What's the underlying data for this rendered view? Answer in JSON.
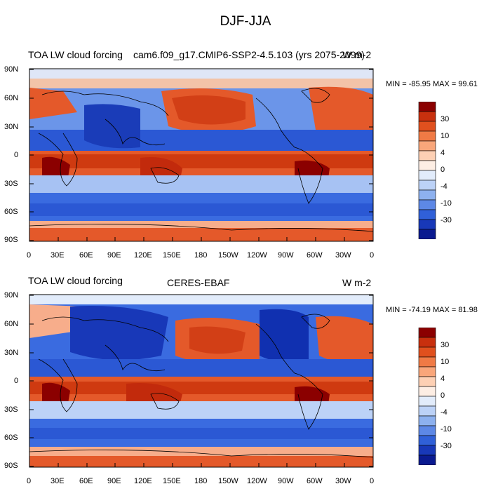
{
  "figure": {
    "title": "DJF-JJA"
  },
  "panels": [
    {
      "left_title": "TOA LW cloud forcing",
      "center_title": "cam6.f09_g17.CMIP6-SSP2-4.5.103 (yrs 2075-2099)",
      "right_title": "W m-2",
      "stats": "MIN = -85.95 MAX =  99.61"
    },
    {
      "left_title": "TOA LW cloud forcing",
      "center_title": "CERES-EBAF",
      "right_title": "W m-2",
      "stats": "MIN = -74.19 MAX =  81.98"
    }
  ],
  "axes": {
    "lat_labels": [
      "90N",
      "60N",
      "30N",
      "0",
      "30S",
      "60S",
      "90S"
    ],
    "lon_labels": [
      "0",
      "30E",
      "60E",
      "90E",
      "120E",
      "150E",
      "180",
      "150W",
      "120W",
      "90W",
      "60W",
      "30W",
      "0"
    ]
  },
  "colorbar": {
    "labels": [
      "30",
      "10",
      "4",
      "0",
      "-4",
      "-10",
      "-30"
    ],
    "colors": [
      "#8b0000",
      "#c8300e",
      "#e0501e",
      "#f07a45",
      "#f9a67a",
      "#fdd0b4",
      "#fdeee4",
      "#e2ecfb",
      "#bcd2f7",
      "#8db1ef",
      "#5d88e6",
      "#3060d8",
      "#1838b8",
      "#0a1a90"
    ]
  },
  "colors": {
    "strong_pos": "#c22a0c",
    "pos": "#e4592a",
    "weak_pos": "#f7ad8b",
    "neutral": "#f3f1f7",
    "weak_neg": "#a7c2f3",
    "neg": "#3a6be0",
    "strong_neg": "#1030b0",
    "land": "#000000"
  }
}
